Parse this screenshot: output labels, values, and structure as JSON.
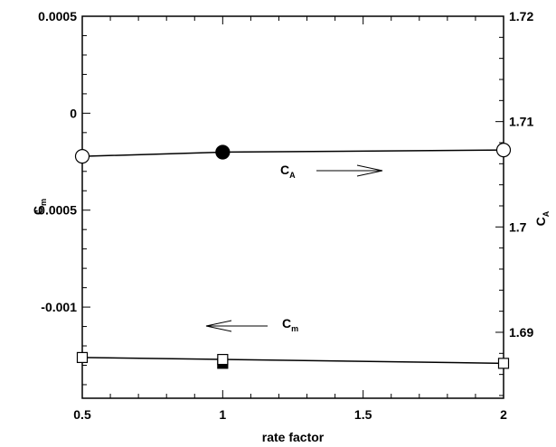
{
  "chart_data": {
    "type": "line",
    "title": "",
    "xlabel": "rate factor",
    "xlim": [
      0.5,
      2
    ],
    "x_ticks": [
      "0.5",
      "1",
      "1.5",
      "2"
    ],
    "y_left": {
      "label_main": "C",
      "label_sub": "m",
      "ylim": [
        -0.00147,
        0.0005
      ],
      "ticks": [
        "0.0005",
        "0",
        "-0.0005",
        "-0.001"
      ]
    },
    "y_right": {
      "label_main": "C",
      "label_sub": "A",
      "ylim": [
        1.68374,
        1.72
      ],
      "ticks": [
        "1.72",
        "1.71",
        "1.7",
        "1.69"
      ]
    },
    "series": [
      {
        "axis": "right",
        "marker": "circle",
        "x": [
          0.5,
          1,
          2
        ],
        "y": [
          1.7067,
          1.7071,
          1.7073
        ],
        "filled": [
          false,
          true,
          false
        ]
      },
      {
        "axis": "left",
        "marker": "square",
        "x": [
          0.5,
          1,
          2
        ],
        "y": [
          -0.00126,
          -0.00127,
          -0.00129
        ],
        "filled": [
          false,
          false,
          false
        ],
        "extra_filled_points": [
          {
            "x": 1,
            "y": -0.00129
          }
        ]
      }
    ],
    "annotations": [
      {
        "text_main": "C",
        "text_sub": "A",
        "arrow": "right"
      },
      {
        "text_main": "C",
        "text_sub": "m",
        "arrow": "left"
      }
    ]
  }
}
